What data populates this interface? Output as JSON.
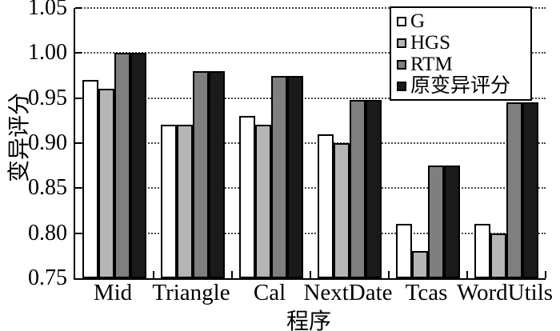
{
  "figure": {
    "background": "#ffffff",
    "axis_color": "#000000",
    "grid_color": "#4a4a4a"
  },
  "chart_data": {
    "type": "bar",
    "title": "",
    "xlabel": "程序",
    "ylabel": "变异评分",
    "ylim": [
      0.75,
      1.05
    ],
    "yticks": [
      0.75,
      0.8,
      0.85,
      0.9,
      0.95,
      1.0,
      1.05
    ],
    "ytick_labels": [
      "0.75",
      "0.80",
      "0.85",
      "0.90",
      "0.95",
      "1.00",
      "1.05"
    ],
    "categories": [
      "Mid",
      "Triangle",
      "Cal",
      "NextDate",
      "Tcas",
      "WordUtils"
    ],
    "series": [
      {
        "name": "G",
        "color": "#ffffff",
        "values": [
          0.97,
          0.92,
          0.93,
          0.91,
          0.81,
          0.81
        ]
      },
      {
        "name": "HGS",
        "color": "#b5b5b5",
        "values": [
          0.96,
          0.92,
          0.92,
          0.9,
          0.78,
          0.8
        ]
      },
      {
        "name": "RTM",
        "color": "#7f7f7f",
        "values": [
          1.0,
          0.98,
          0.975,
          0.948,
          0.875,
          0.945
        ]
      },
      {
        "name": "原变异评分",
        "color": "#1a1a1a",
        "values": [
          1.0,
          0.98,
          0.975,
          0.948,
          0.875,
          0.945
        ]
      }
    ],
    "grid": "horizontal-dotted",
    "legend_position": "top-right"
  }
}
